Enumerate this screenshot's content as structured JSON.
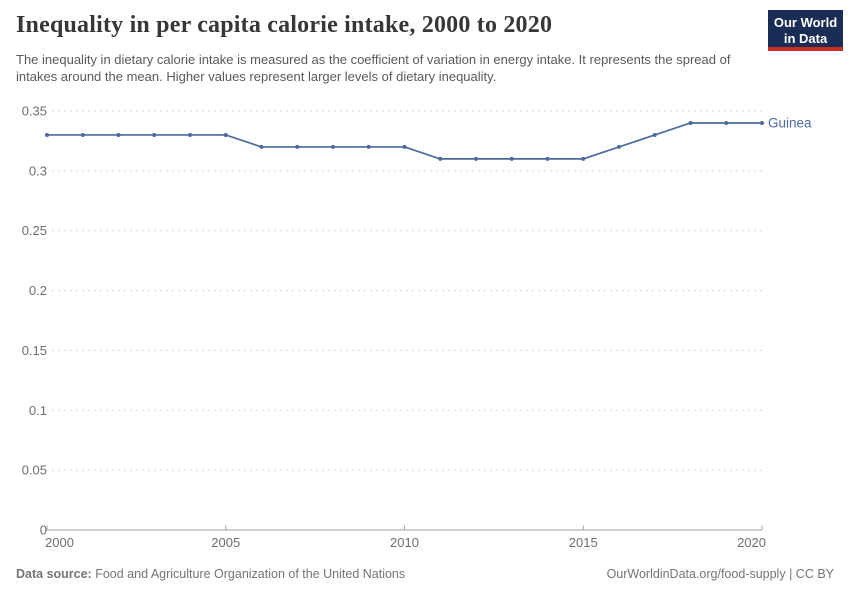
{
  "header": {
    "title": "Inequality in per capita calorie intake, 2000 to 2020",
    "subtitle": "The inequality in dietary calorie intake is measured as the coefficient of variation in energy intake. It represents the spread of intakes around the mean. Higher values represent larger levels of dietary inequality.",
    "logo": {
      "line1": "Our World",
      "line2": "in Data",
      "bg_color": "#1A2D56",
      "stripe_color": "#CC2B22"
    }
  },
  "chart_data": {
    "type": "line",
    "title": "Inequality in per capita calorie intake, 2000 to 2020",
    "x": [
      2000,
      2001,
      2002,
      2003,
      2004,
      2005,
      2006,
      2007,
      2008,
      2009,
      2010,
      2011,
      2012,
      2013,
      2014,
      2015,
      2016,
      2017,
      2018,
      2019,
      2020
    ],
    "series": [
      {
        "name": "Guinea",
        "color": "#4C6A9C",
        "values": [
          0.33,
          0.33,
          0.33,
          0.33,
          0.33,
          0.33,
          0.32,
          0.32,
          0.32,
          0.32,
          0.32,
          0.31,
          0.31,
          0.31,
          0.31,
          0.31,
          0.32,
          0.33,
          0.34,
          0.34,
          0.34
        ]
      }
    ],
    "xlabel": "",
    "ylabel": "",
    "xlim": [
      2000,
      2020
    ],
    "ylim": [
      0,
      0.35
    ],
    "xticks": [
      2000,
      2005,
      2010,
      2015,
      2020
    ],
    "yticks": [
      0,
      0.05,
      0.1,
      0.15,
      0.2,
      0.25,
      0.3,
      0.35
    ],
    "grid": "horizontal-dashed",
    "legend_position": "end-of-line-label",
    "colors": {
      "gridline": "#dadada",
      "axis": "#a3a3a3",
      "tick_label": "#6e6e6e"
    }
  },
  "footer": {
    "datasource_label": "Data source:",
    "datasource_value": "Food and Agriculture Organization of the United Nations",
    "credit_link": "OurWorldinData.org/food-supply",
    "separator": " | ",
    "license": "CC BY"
  }
}
